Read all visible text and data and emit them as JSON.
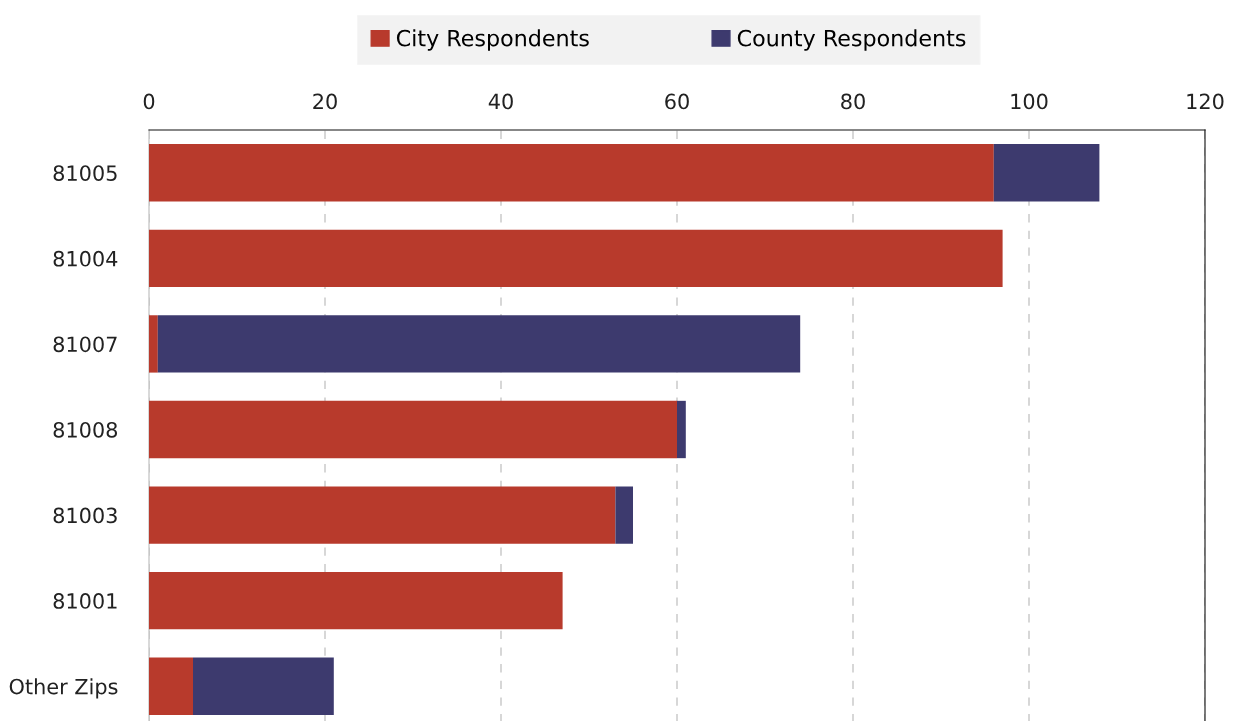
{
  "chart_data": {
    "type": "bar",
    "orientation": "horizontal",
    "stacked": true,
    "categories": [
      "81005",
      "81004",
      "81007",
      "81008",
      "81003",
      "81001",
      "Other Zips"
    ],
    "series": [
      {
        "name": "City Respondents",
        "color": "#b83a2c",
        "values": [
          96,
          97,
          1,
          60,
          53,
          47,
          5
        ]
      },
      {
        "name": "County Respondents",
        "color": "#3d3a6e",
        "values": [
          12,
          0,
          73,
          1,
          2,
          0,
          16
        ]
      }
    ],
    "xlim": [
      0,
      120
    ],
    "xticks": [
      0,
      20,
      40,
      60,
      80,
      100,
      120
    ],
    "grid": "x",
    "legend": "top"
  }
}
